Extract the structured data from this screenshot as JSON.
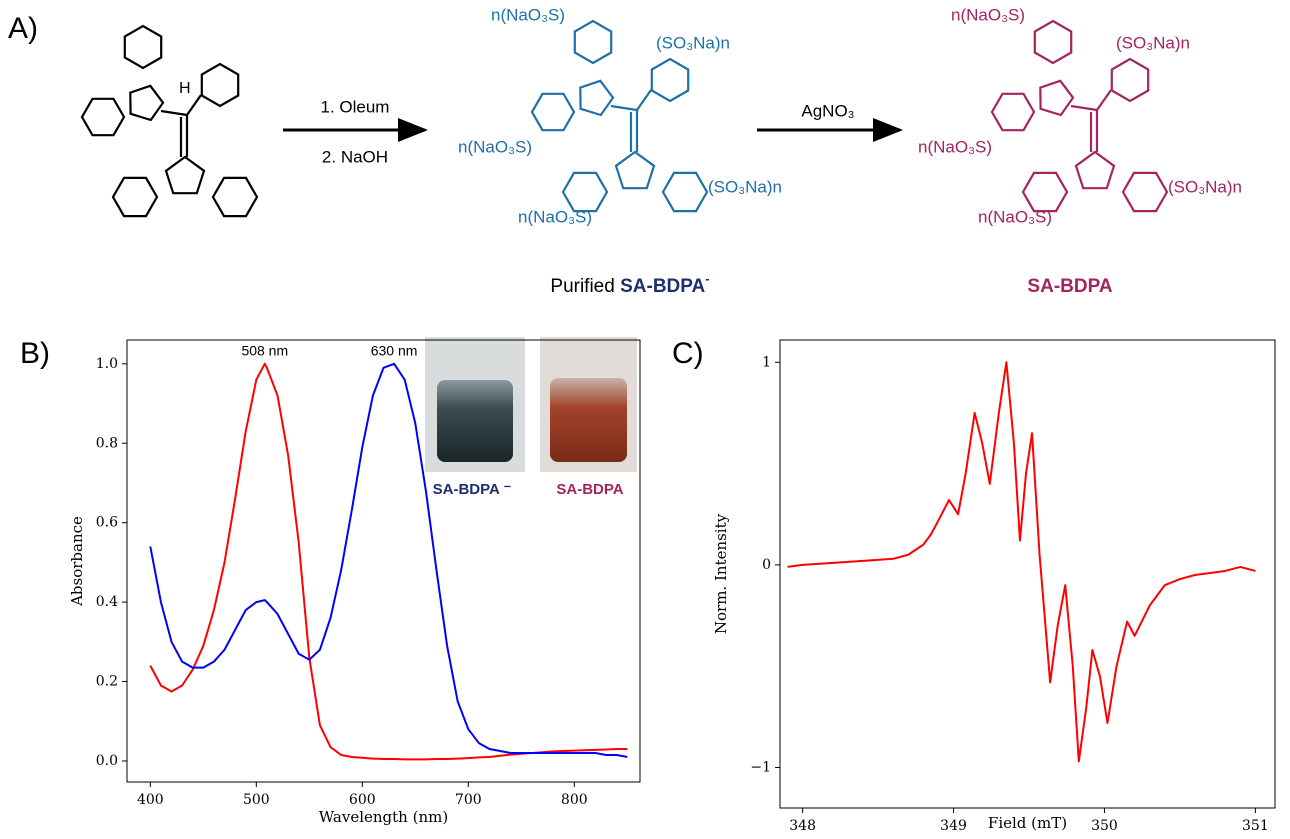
{
  "scheme": {
    "panel_label": "A)",
    "atom_label": "H",
    "step1": [
      "1. Oleum",
      "2. NaOH"
    ],
    "step2": "AgNO₃",
    "product1_substituents": [
      "n(NaO₃S)",
      "(SO₃Na)n",
      "n(NaO₃S)",
      "(SO₃Na)n",
      "n(NaO₃S)"
    ],
    "product2_substituents": [
      "n(NaO₃S)",
      "(SO₃Na)n",
      "n(NaO₃S)",
      "(SO₃Na)n",
      "n(NaO₃S)"
    ],
    "product1_caption": {
      "prefix": "Purified ",
      "name": "SA-BDPA",
      "charge": "-"
    },
    "product2_caption": "SA-BDPA"
  },
  "chart_data": [
    {
      "type": "line",
      "panel_label": "B)",
      "xlabel": "Wavelength (nm)",
      "ylabel": "Absorbance",
      "annotations": [
        "508 nm",
        "630 nm"
      ],
      "inset_labels": [
        "SA-BDPA ⁻",
        "SA-BDPA"
      ],
      "x": [
        400,
        410,
        420,
        430,
        440,
        450,
        460,
        470,
        480,
        490,
        500,
        508,
        510,
        520,
        530,
        540,
        550,
        560,
        570,
        580,
        590,
        600,
        610,
        620,
        630,
        640,
        650,
        660,
        670,
        680,
        690,
        700,
        710,
        720,
        730,
        740,
        750,
        760,
        770,
        780,
        790,
        800,
        810,
        820,
        830,
        840,
        850
      ],
      "series": [
        {
          "name": "SA-BDPA",
          "color": "#ff0000",
          "values": [
            0.24,
            0.19,
            0.175,
            0.19,
            0.23,
            0.29,
            0.38,
            0.5,
            0.66,
            0.83,
            0.96,
            1.0,
            0.99,
            0.92,
            0.77,
            0.55,
            0.26,
            0.09,
            0.035,
            0.015,
            0.01,
            0.008,
            0.006,
            0.005,
            0.005,
            0.004,
            0.004,
            0.004,
            0.005,
            0.005,
            0.006,
            0.007,
            0.009,
            0.01,
            0.013,
            0.016,
            0.018,
            0.02,
            0.022,
            0.024,
            0.025,
            0.026,
            0.027,
            0.028,
            0.029,
            0.03,
            0.03
          ]
        },
        {
          "name": "SA-BDPA ⁻",
          "color": "#0000ff",
          "values": [
            0.54,
            0.4,
            0.3,
            0.25,
            0.235,
            0.235,
            0.25,
            0.28,
            0.33,
            0.38,
            0.4,
            0.405,
            0.4,
            0.37,
            0.32,
            0.27,
            0.255,
            0.28,
            0.36,
            0.48,
            0.63,
            0.79,
            0.92,
            0.99,
            1.0,
            0.96,
            0.85,
            0.68,
            0.48,
            0.29,
            0.15,
            0.08,
            0.045,
            0.03,
            0.025,
            0.02,
            0.02,
            0.02,
            0.02,
            0.02,
            0.02,
            0.02,
            0.02,
            0.02,
            0.015,
            0.015,
            0.01
          ]
        }
      ],
      "xlim": [
        378,
        862
      ],
      "xticks": [
        400,
        500,
        600,
        700,
        800
      ],
      "ylim": [
        -0.053,
        1.06
      ],
      "yticks": [
        {
          "value": 0,
          "label": "0.0"
        },
        0.2,
        0.4,
        0.6,
        0.8,
        {
          "value": 1,
          "label": "1.0"
        }
      ]
    },
    {
      "type": "line",
      "panel_label": "C)",
      "xlabel": "Field (mT)",
      "ylabel": "Norm. Intensity",
      "x": [
        347.9,
        348.0,
        348.2,
        348.4,
        348.6,
        348.7,
        348.8,
        348.85,
        348.9,
        348.97,
        349.03,
        349.08,
        349.14,
        349.19,
        349.24,
        349.3,
        349.35,
        349.4,
        349.44,
        349.48,
        349.52,
        349.57,
        349.64,
        349.69,
        349.74,
        349.79,
        349.83,
        349.88,
        349.92,
        349.97,
        350.02,
        350.08,
        350.15,
        350.2,
        350.3,
        350.4,
        350.5,
        350.6,
        350.8,
        350.9,
        351.0
      ],
      "series": [
        {
          "color": "#ff0000",
          "values": [
            -0.01,
            0.0,
            0.01,
            0.02,
            0.03,
            0.05,
            0.1,
            0.15,
            0.22,
            0.32,
            0.25,
            0.45,
            0.75,
            0.6,
            0.4,
            0.75,
            1.0,
            0.6,
            0.12,
            0.45,
            0.65,
            0.05,
            -0.58,
            -0.3,
            -0.1,
            -0.5,
            -0.97,
            -0.7,
            -0.42,
            -0.55,
            -0.78,
            -0.5,
            -0.28,
            -0.35,
            -0.2,
            -0.1,
            -0.07,
            -0.05,
            -0.03,
            -0.01,
            -0.03
          ]
        }
      ],
      "xlim": [
        347.85,
        351.13
      ],
      "xticks": [
        348,
        349,
        350,
        351
      ],
      "ylim": [
        -1.2,
        1.11
      ],
      "yticks": [
        {
          "value": -1,
          "label": "−1"
        },
        0,
        1
      ]
    }
  ]
}
